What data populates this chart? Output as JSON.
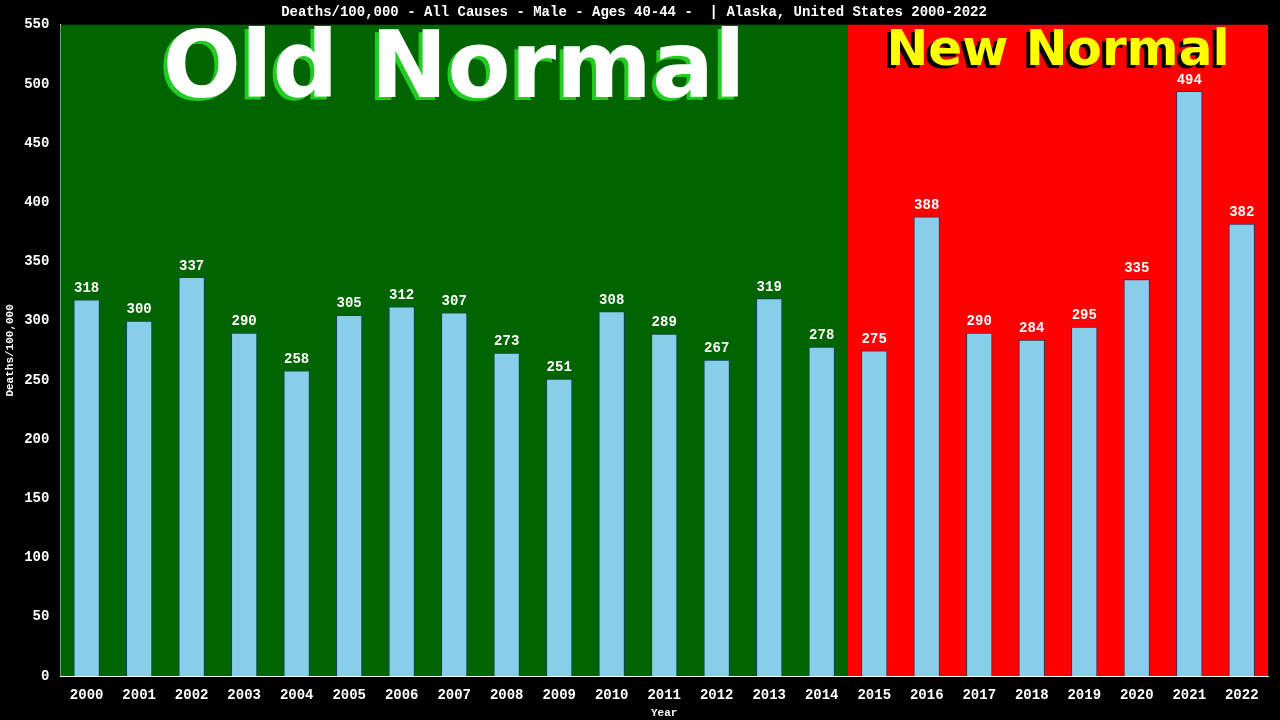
{
  "chart_data": {
    "type": "bar",
    "title": "Deaths/100,000 - All Causes - Male - Ages 40-44 -  | Alaska, United States 2000-2022",
    "xlabel": "Year",
    "ylabel": "Deaths/100,000",
    "categories": [
      "2000",
      "2001",
      "2002",
      "2003",
      "2004",
      "2005",
      "2006",
      "2007",
      "2008",
      "2009",
      "2010",
      "2011",
      "2012",
      "2013",
      "2014",
      "2015",
      "2016",
      "2017",
      "2018",
      "2019",
      "2020",
      "2021",
      "2022"
    ],
    "values": [
      318,
      300,
      337,
      290,
      258,
      305,
      312,
      307,
      273,
      251,
      308,
      289,
      267,
      319,
      278,
      275,
      388,
      290,
      284,
      295,
      335,
      494,
      382
    ],
    "color": "#87ceeb",
    "data_labels": true,
    "grid": false,
    "legend": false,
    "ylim": [
      0,
      550
    ],
    "yticks": [
      0,
      50,
      100,
      150,
      200,
      250,
      300,
      350,
      400,
      450,
      500,
      550
    ],
    "bands": [
      {
        "axis": "x",
        "from": "2000",
        "to": "2014",
        "label": "Old Normal",
        "color": "#006400"
      },
      {
        "axis": "x",
        "from": "2015",
        "to": "2022",
        "label": "New Normal",
        "color": "#ff0000"
      }
    ]
  }
}
